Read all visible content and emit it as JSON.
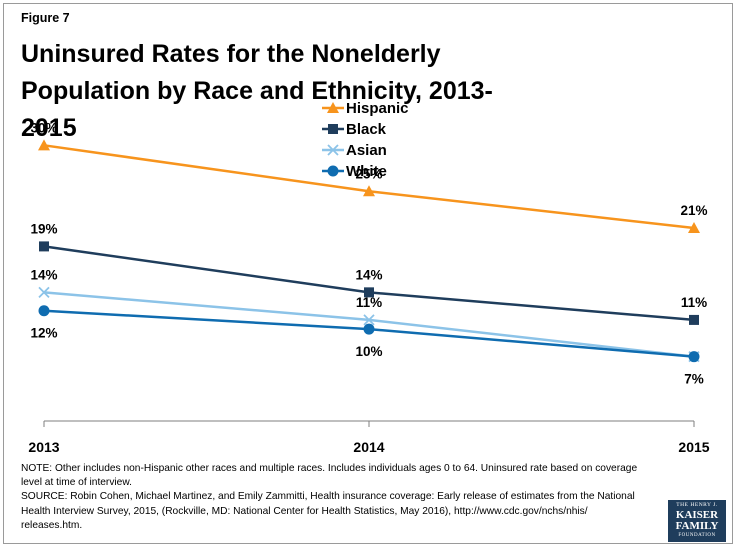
{
  "figure_label": "Figure 7",
  "title": "Uninsured Rates for the Nonelderly Population by Race and Ethnicity, 2013-2015",
  "notes": {
    "note": "NOTE: Other includes non-Hispanic other races and multiple races. Includes individuals ages 0 to 64. Uninsured rate based on coverage level at time of interview.",
    "source": "SOURCE: Robin Cohen, Michael Martinez, and Emily Zammitti, Health insurance coverage: Early release of estimates from the National Health Interview Survey, 2015, (Rockville, MD: National Center for Health Statistics, May 2016), http://www.cdc.gov/nchs/nhis/ releases.htm."
  },
  "logo": {
    "line1": "THE HENRY J.",
    "line2": "KAISER",
    "line3": "FAMILY",
    "line4": "FOUNDATION"
  },
  "colors": {
    "Hispanic": "#f7941d",
    "Black": "#1f3d5c",
    "Asian": "#8cc3e8",
    "White": "#0f6cb0",
    "axis": "#7f7f7f"
  },
  "chart_data": {
    "type": "line",
    "title": "Uninsured Rates for the Nonelderly Population by Race and Ethnicity, 2013-2015",
    "categories": [
      "2013",
      "2014",
      "2015"
    ],
    "ylim": [
      0,
      37
    ],
    "grid": false,
    "legend_position": "top-center",
    "series": [
      {
        "name": "Hispanic",
        "marker": "triangle",
        "values": [
          30,
          25,
          21
        ],
        "labels": [
          "30%",
          "25%",
          "21%"
        ]
      },
      {
        "name": "Black",
        "marker": "square",
        "values": [
          19,
          14,
          11
        ],
        "labels": [
          "19%",
          "14%",
          "11%"
        ]
      },
      {
        "name": "Asian",
        "marker": "x",
        "values": [
          14,
          11,
          7
        ],
        "labels": [
          "14%",
          "11%",
          "7%"
        ]
      },
      {
        "name": "White",
        "marker": "circle",
        "values": [
          12,
          10,
          7
        ],
        "labels": [
          "12%",
          "10%",
          "7%"
        ]
      }
    ]
  }
}
